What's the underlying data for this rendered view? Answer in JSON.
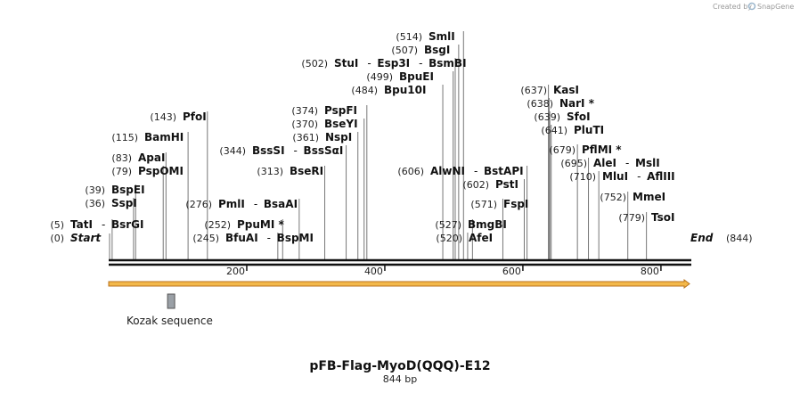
{
  "credit": {
    "prefix": "Created by",
    "brand": "SnapGene"
  },
  "sequence": {
    "name": "pFB-Flag-MyoD(QQQ)-E12",
    "length_label": "844 bp",
    "length_bp": 844
  },
  "ruler": {
    "ticks": [
      200,
      400,
      600,
      800
    ]
  },
  "start_label": {
    "pos": 0,
    "pos_label": "(0)",
    "name": "Start"
  },
  "end_label": {
    "pos": 844,
    "pos_label": "(844)",
    "name": "End"
  },
  "sites": [
    {
      "pos": 5,
      "pos_label": "(5)",
      "names": [
        "TatI",
        "BsrGI"
      ]
    },
    {
      "pos": 36,
      "pos_label": "(36)",
      "names": [
        "SspI"
      ]
    },
    {
      "pos": 39,
      "pos_label": "(39)",
      "names": [
        "BspEI"
      ]
    },
    {
      "pos": 79,
      "pos_label": "(79)",
      "names": [
        "PspOMI"
      ]
    },
    {
      "pos": 83,
      "pos_label": "(83)",
      "names": [
        "ApaI"
      ]
    },
    {
      "pos": 115,
      "pos_label": "(115)",
      "names": [
        "BamHI"
      ]
    },
    {
      "pos": 143,
      "pos_label": "(143)",
      "names": [
        "PfoI"
      ]
    },
    {
      "pos": 245,
      "pos_label": "(245)",
      "names": [
        "BfuAI",
        "BspMI"
      ]
    },
    {
      "pos": 252,
      "pos_label": "(252)",
      "names": [
        "PpuMI *"
      ]
    },
    {
      "pos": 276,
      "pos_label": "(276)",
      "names": [
        "PmlI",
        "BsaAI"
      ]
    },
    {
      "pos": 313,
      "pos_label": "(313)",
      "names": [
        "BseRI"
      ]
    },
    {
      "pos": 344,
      "pos_label": "(344)",
      "names": [
        "BssSI",
        "BssSαI"
      ]
    },
    {
      "pos": 361,
      "pos_label": "(361)",
      "names": [
        "NspI"
      ]
    },
    {
      "pos": 370,
      "pos_label": "(370)",
      "names": [
        "BseYI"
      ]
    },
    {
      "pos": 374,
      "pos_label": "(374)",
      "names": [
        "PspFI"
      ]
    },
    {
      "pos": 484,
      "pos_label": "(484)",
      "names": [
        "Bpu10I"
      ]
    },
    {
      "pos": 499,
      "pos_label": "(499)",
      "names": [
        "BpuEI"
      ]
    },
    {
      "pos": 502,
      "pos_label": "(502)",
      "names": [
        "StuI",
        "Esp3I",
        "BsmBI"
      ]
    },
    {
      "pos": 507,
      "pos_label": "(507)",
      "names": [
        "BsgI"
      ]
    },
    {
      "pos": 514,
      "pos_label": "(514)",
      "names": [
        "SmlI"
      ]
    },
    {
      "pos": 520,
      "pos_label": "(520)",
      "names": [
        "AfeI"
      ]
    },
    {
      "pos": 527,
      "pos_label": "(527)",
      "names": [
        "BmgBI"
      ]
    },
    {
      "pos": 571,
      "pos_label": "(571)",
      "names": [
        "FspI"
      ]
    },
    {
      "pos": 602,
      "pos_label": "(602)",
      "names": [
        "PstI"
      ]
    },
    {
      "pos": 606,
      "pos_label": "(606)",
      "names": [
        "AlwNI",
        "BstAPI"
      ]
    },
    {
      "pos": 637,
      "pos_label": "(637)",
      "names": [
        "KasI"
      ]
    },
    {
      "pos": 638,
      "pos_label": "(638)",
      "names": [
        "NarI *"
      ]
    },
    {
      "pos": 639,
      "pos_label": "(639)",
      "names": [
        "SfoI"
      ]
    },
    {
      "pos": 641,
      "pos_label": "(641)",
      "names": [
        "PluTI"
      ]
    },
    {
      "pos": 679,
      "pos_label": "(679)",
      "names": [
        "PflMI *"
      ]
    },
    {
      "pos": 695,
      "pos_label": "(695)",
      "names": [
        "AleI",
        "MslI"
      ]
    },
    {
      "pos": 710,
      "pos_label": "(710)",
      "names": [
        "MluI",
        "AflIII"
      ]
    },
    {
      "pos": 752,
      "pos_label": "(752)",
      "names": [
        "MmeI"
      ]
    },
    {
      "pos": 779,
      "pos_label": "(779)",
      "names": [
        "TsoI"
      ]
    }
  ],
  "features": [
    {
      "name": "orf-arrow",
      "start": 0,
      "end": 844,
      "color": "#f3b84a",
      "outline": "#b8721c"
    },
    {
      "name": "Kozak sequence",
      "start": 84,
      "end": 94,
      "color": "#9aa0a6",
      "outline": "#555555"
    }
  ]
}
